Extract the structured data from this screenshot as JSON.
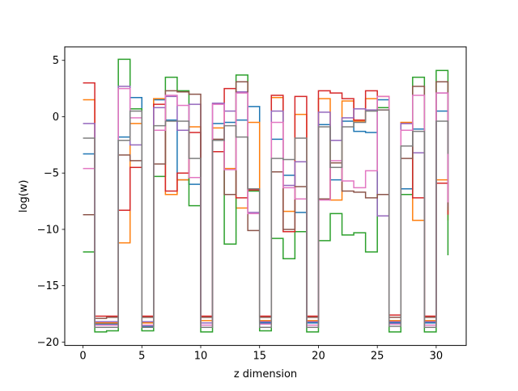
{
  "chart_data": {
    "type": "line",
    "step": "post",
    "xlabel": "z dimension",
    "ylabel": "log(w)",
    "xlim": [
      -1.55,
      32.55
    ],
    "ylim": [
      -20.3,
      6.2
    ],
    "xticks": [
      0,
      5,
      10,
      15,
      20,
      25,
      30
    ],
    "yticks": [
      5,
      0,
      -5,
      -10,
      -15,
      -20
    ],
    "x": [
      0,
      1,
      2,
      3,
      4,
      5,
      6,
      7,
      8,
      9,
      10,
      11,
      12,
      13,
      14,
      15,
      16,
      17,
      18,
      19,
      20,
      21,
      22,
      23,
      24,
      25,
      26,
      27,
      28,
      29,
      30,
      31
    ],
    "series": [
      {
        "color": "#1f77b4",
        "values": [
          -3.3,
          -18.4,
          -18.4,
          -1.8,
          1.7,
          -18.6,
          1.5,
          -0.3,
          -5.6,
          -6.0,
          -18.3,
          -0.6,
          -0.5,
          -0.3,
          0.9,
          -18.3,
          -2.0,
          -5.2,
          -8.5,
          -18.3,
          -0.7,
          -5.6,
          -0.4,
          -1.3,
          -1.4,
          1.5,
          -18.3,
          -6.4,
          -1.1,
          -18.3,
          0.5,
          -6.2
        ]
      },
      {
        "color": "#ff7f0e",
        "values": [
          1.5,
          -18.3,
          -18.3,
          -11.2,
          -0.6,
          -18.3,
          1.6,
          -6.9,
          -5.6,
          -0.9,
          -18.1,
          -1.0,
          -4.6,
          -8.1,
          -0.5,
          -18.1,
          1.7,
          -8.4,
          0.2,
          -18.1,
          1.6,
          -7.4,
          1.4,
          -0.4,
          1.6,
          1.8,
          -18.1,
          -0.5,
          -9.2,
          -18.1,
          -5.6,
          -9.2
        ]
      },
      {
        "color": "#2ca02c",
        "values": [
          -12.0,
          -19.1,
          -19.0,
          5.1,
          0.7,
          -19.0,
          -5.3,
          3.5,
          2.3,
          -7.9,
          -19.1,
          -3.1,
          -11.3,
          3.7,
          -6.6,
          -19.0,
          -10.8,
          -12.6,
          -10.2,
          -19.1,
          -11.0,
          -8.6,
          -10.5,
          -10.3,
          -12.0,
          0.8,
          -19.1,
          -6.9,
          3.5,
          -19.1,
          4.1,
          -12.3
        ]
      },
      {
        "color": "#d62728",
        "values": [
          3.0,
          -17.7,
          -17.7,
          -8.3,
          -4.5,
          -17.7,
          1.1,
          -6.6,
          -5.0,
          -1.4,
          -17.7,
          -3.1,
          2.5,
          -7.2,
          -6.5,
          -17.7,
          1.9,
          -10.2,
          1.8,
          -17.7,
          2.3,
          2.1,
          1.6,
          -0.3,
          2.3,
          0.6,
          -17.6,
          -0.6,
          -7.2,
          -17.7,
          -5.9,
          -8.7
        ]
      },
      {
        "color": "#9467bd",
        "values": [
          -0.6,
          -18.2,
          -18.2,
          2.7,
          -2.5,
          -18.2,
          0.8,
          1.8,
          -1.2,
          1.1,
          -18.3,
          1.2,
          0.5,
          2.2,
          -8.5,
          -18.2,
          0.5,
          -6.1,
          -4.0,
          -18.2,
          0.4,
          -2.1,
          -0.1,
          0.7,
          0.6,
          -8.8,
          -18.2,
          -0.6,
          -3.2,
          -18.2,
          2.1,
          -8.0
        ]
      },
      {
        "color": "#8c564b",
        "values": [
          -8.7,
          -17.9,
          -17.8,
          -3.4,
          -3.9,
          -17.8,
          -4.2,
          2.3,
          2.2,
          2.0,
          -17.8,
          -2.0,
          -6.9,
          3.1,
          -10.1,
          -17.8,
          -4.9,
          -10.0,
          -6.2,
          -17.8,
          -7.3,
          -4.1,
          -6.6,
          -6.7,
          -7.2,
          -6.9,
          -17.8,
          -3.7,
          2.7,
          -17.8,
          3.1,
          -8.3
        ]
      },
      {
        "color": "#e377c2",
        "values": [
          -4.6,
          -18.5,
          -18.5,
          2.5,
          -0.1,
          -18.5,
          -1.2,
          1.9,
          1.0,
          -5.4,
          -18.5,
          1.1,
          -4.7,
          2.1,
          -8.6,
          -18.4,
          -0.5,
          -6.3,
          -7.3,
          -18.5,
          -7.4,
          -3.9,
          -5.7,
          -6.3,
          -4.8,
          1.8,
          -18.4,
          -1.2,
          1.9,
          -18.5,
          2.1,
          -7.6
        ]
      },
      {
        "color": "#7f7f7f",
        "values": [
          -1.9,
          -18.7,
          -18.7,
          -2.1,
          0.5,
          -18.7,
          -0.8,
          -0.4,
          -0.4,
          -3.7,
          -18.7,
          -2.1,
          -0.8,
          -1.8,
          -6.4,
          -18.7,
          -3.7,
          -3.8,
          -1.9,
          -18.7,
          -0.9,
          -4.5,
          -0.9,
          -0.5,
          0.5,
          0.6,
          -18.6,
          -2.6,
          -1.3,
          -18.7,
          -0.4,
          -3.3
        ]
      }
    ]
  }
}
